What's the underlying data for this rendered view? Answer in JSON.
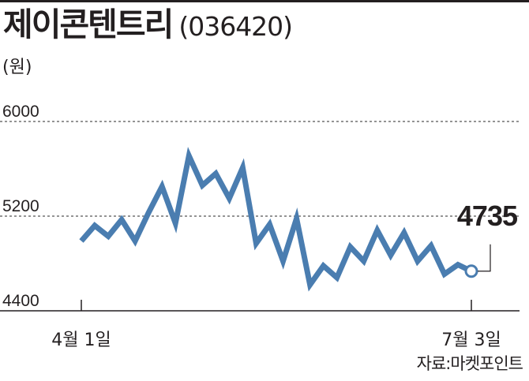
{
  "header": {
    "title": "제이콘텐트리",
    "code": "(036420)",
    "unit": "(원)"
  },
  "source": "자료:마켓포인트",
  "colors": {
    "line": "#4a7db0",
    "text": "#231f20",
    "grid": "#555555"
  },
  "chart_data": {
    "type": "line",
    "title": "제이콘텐트리 (036420)",
    "ylabel": "(원)",
    "xlabel": "",
    "ylim": [
      4400,
      6000
    ],
    "yticks": [
      6000,
      5200,
      4400
    ],
    "gridlines_y": [
      6000,
      5200
    ],
    "x_tick_labels": [
      "4월 1일",
      "7월 3일"
    ],
    "series": [
      {
        "name": "",
        "color": "#4a7db0",
        "values": [
          4990,
          5120,
          5030,
          5170,
          4990,
          5230,
          5450,
          5140,
          5710,
          5460,
          5560,
          5350,
          5610,
          4970,
          5130,
          4820,
          5180,
          4620,
          4780,
          4680,
          4940,
          4820,
          5080,
          4870,
          5060,
          4820,
          4950,
          4710,
          4790,
          4735
        ]
      }
    ],
    "last_value_label": "4735",
    "grid": true
  }
}
